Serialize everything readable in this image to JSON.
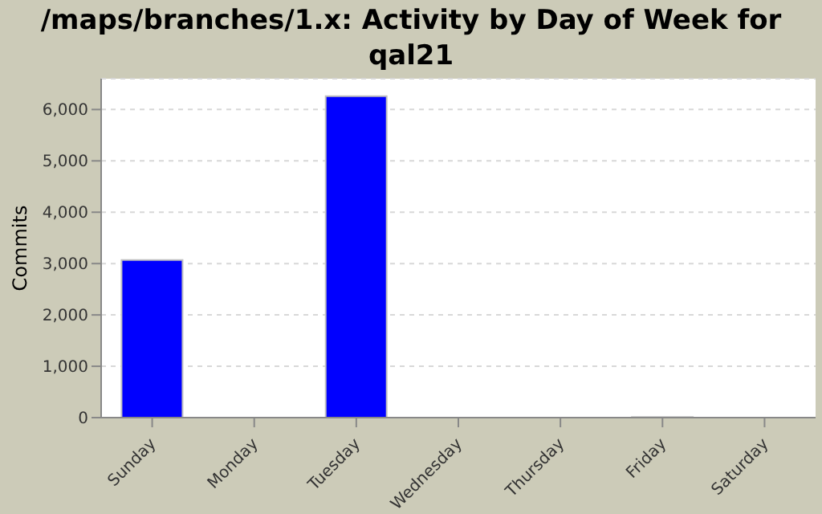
{
  "chart_data": {
    "type": "bar",
    "title": "/maps/branches/1.x: Activity by Day of Week for qal21",
    "categories": [
      "Sunday",
      "Monday",
      "Tuesday",
      "Wednesday",
      "Thursday",
      "Friday",
      "Saturday"
    ],
    "values": [
      3070,
      0,
      6260,
      0,
      0,
      10,
      0
    ],
    "color": "#0000ff",
    "ylabel": "Commits",
    "ylim": [
      0,
      6600
    ],
    "yticks": [
      0,
      {
        "value": 1000,
        "label": "1,000"
      },
      {
        "value": 2000,
        "label": "2,000"
      },
      {
        "value": 3000,
        "label": "3,000"
      },
      {
        "value": 4000,
        "label": "4,000"
      },
      {
        "value": 5000,
        "label": "5,000"
      },
      {
        "value": 6000,
        "label": "6,000"
      }
    ],
    "grid": "y"
  }
}
